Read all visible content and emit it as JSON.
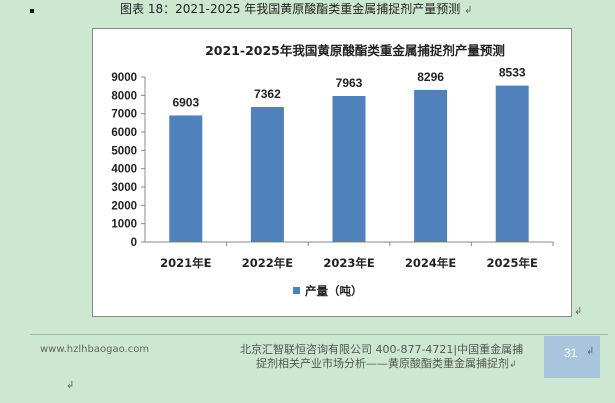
{
  "figure_caption": "图表 18：2021-2025 年我国黄原酸酯类重金属捕捉剂产量预测",
  "paragraph_mark": "↲",
  "chart_data": {
    "type": "bar",
    "title": "2021-2025年我国黄原酸酯类重金属捕捉剂产量预测",
    "categories": [
      "2021年E",
      "2022年E",
      "2023年E",
      "2024年E",
      "2025年E"
    ],
    "series": [
      {
        "name": "产量（吨）",
        "values": [
          6903,
          7362,
          7963,
          8296,
          8533
        ],
        "color": "#4f81bd"
      }
    ],
    "data_labels": [
      "6903",
      "7362",
      "7963",
      "8296",
      "8533"
    ],
    "ylim": [
      0,
      9000
    ],
    "yticks": [
      "0",
      "1000",
      "2000",
      "3000",
      "4000",
      "5000",
      "6000",
      "7000",
      "8000",
      "9000"
    ],
    "grid": false,
    "legend_position": "bottom"
  },
  "footer": {
    "url": "www.hzlhbaogao.com",
    "company_line": "北京汇智联恒咨询有限公司  400-877-4721|中国重金属捕",
    "subtitle_line": "捉剂相关产业市场分析——黄原酸酯类重金属捕捉剂",
    "page_number": "31"
  },
  "colors": {
    "background": "#cde8d0",
    "bar": "#4f81bd",
    "page_badge": "#a9c5de"
  }
}
